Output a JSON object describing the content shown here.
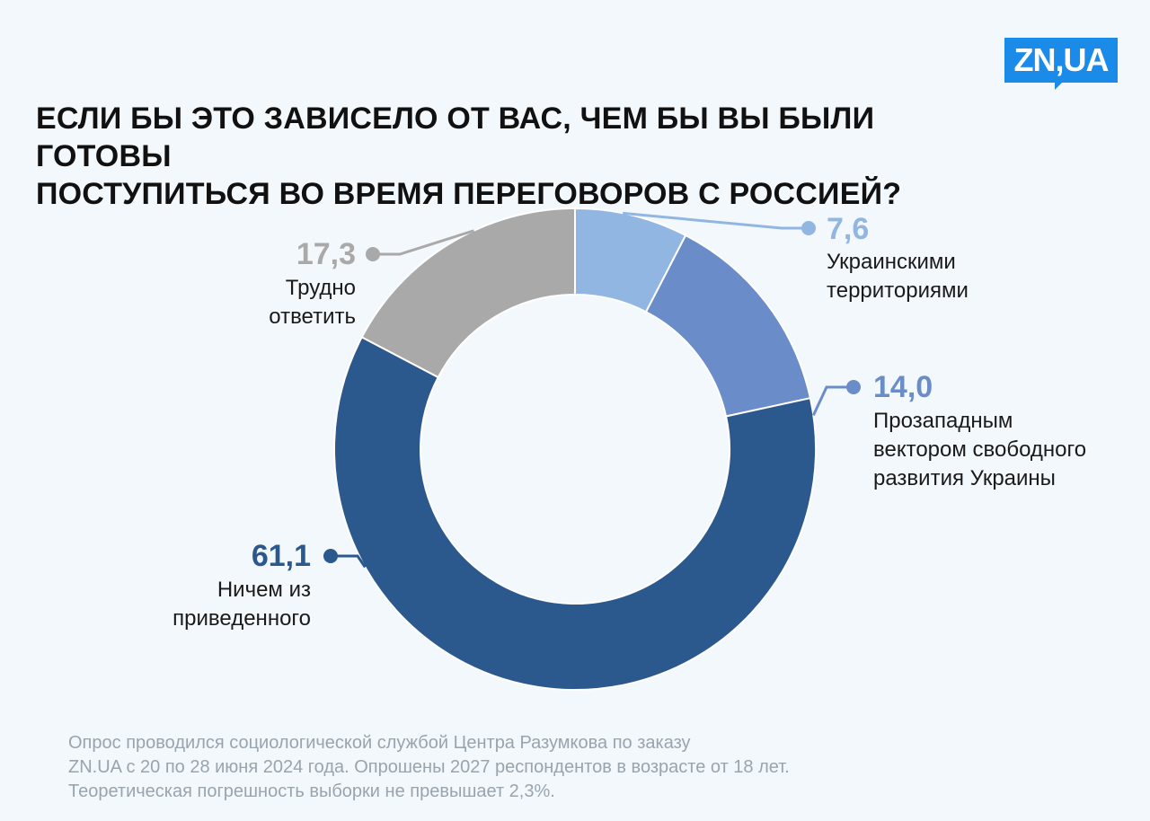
{
  "logo": {
    "text": "ZN,UA",
    "color": "#1a8be8"
  },
  "title": {
    "line1": "ЕСЛИ БЫ ЭТО ЗАВИСЕЛО ОТ ВАС, ЧЕМ БЫ ВЫ БЫЛИ ГОТОВЫ",
    "line2": "ПОСТУПИТЬСЯ ВО ВРЕМЯ ПЕРЕГОВОРОВ С РОССИЕЙ?"
  },
  "chart_data": {
    "type": "pie",
    "donut": true,
    "slices": [
      {
        "value": 7.6,
        "value_label": "7,6",
        "label_lines": [
          "Украинскими",
          "территориями"
        ],
        "color": "#92b6e2"
      },
      {
        "value": 14.0,
        "value_label": "14,0",
        "label_lines": [
          "Прозападным",
          "вектором свободного",
          "развития Украины"
        ],
        "color": "#6a8cc8"
      },
      {
        "value": 61.1,
        "value_label": "61,1",
        "label_lines": [
          "Ничем из",
          "приведенного"
        ],
        "color": "#2b598d"
      },
      {
        "value": 17.3,
        "value_label": "17,3",
        "label_lines": [
          "Трудно",
          "ответить"
        ],
        "color": "#a9a9a9"
      }
    ]
  },
  "source": {
    "line1": "Опрос проводился социологической службой Центра Разумкова по заказу",
    "line2": "ZN.UA с 20 по 28 июня 2024 года. Опрошены 2027 респондентов в возрасте от 18 лет.",
    "line3": "Теоретическая погрешность выборки не превышает 2,3%."
  }
}
